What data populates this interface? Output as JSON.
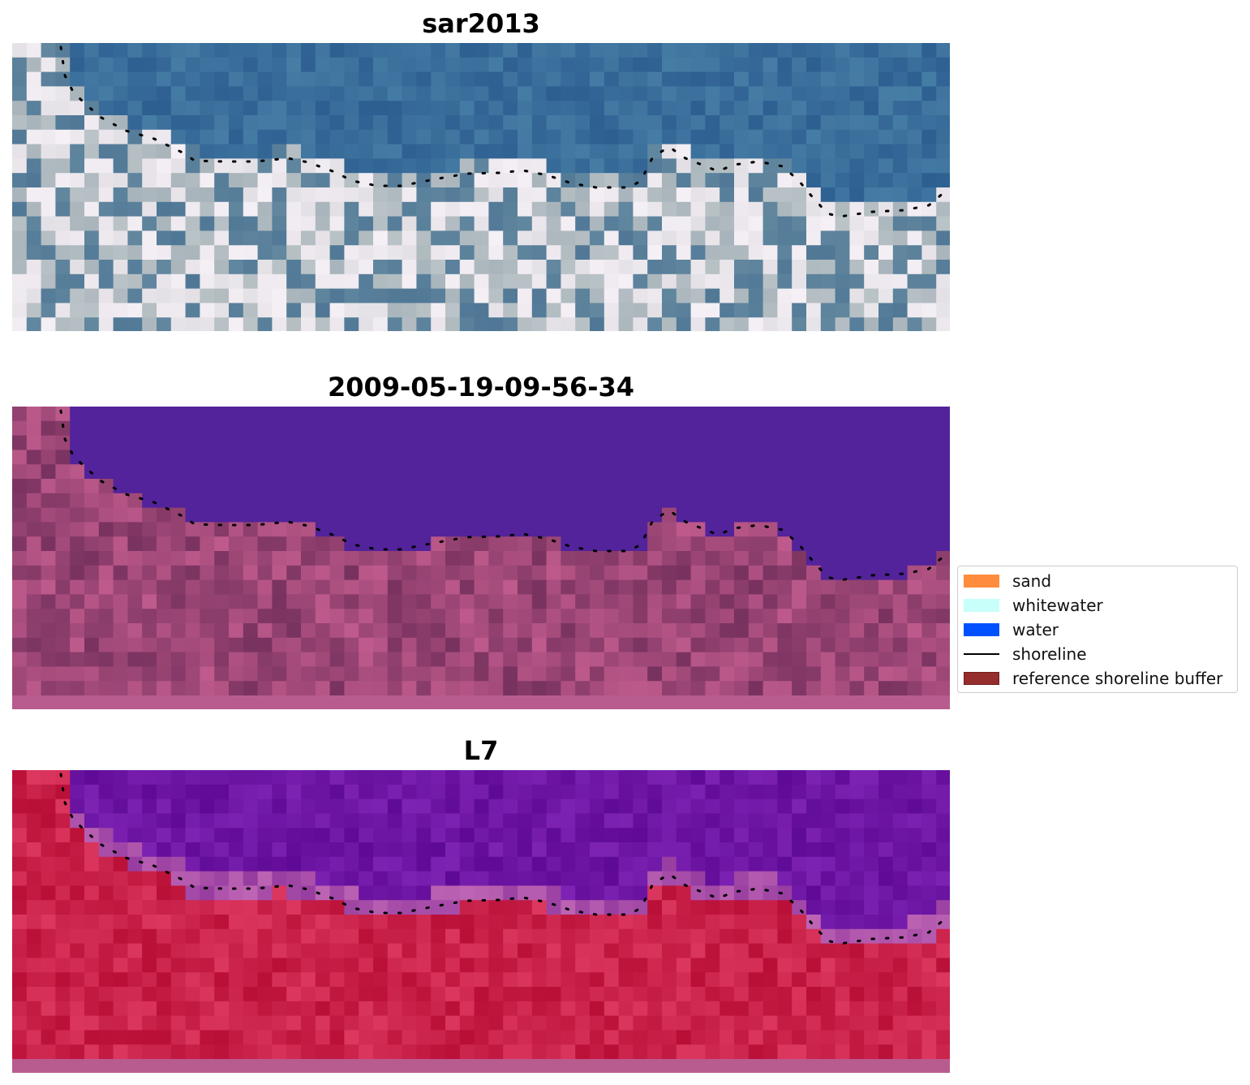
{
  "panels": [
    {
      "title": "sar2013",
      "style": "rgb"
    },
    {
      "title": "2009-05-19-09-56-34",
      "style": "classified"
    },
    {
      "title": "L7",
      "style": "index"
    }
  ],
  "legend": {
    "items": [
      {
        "label": "sand",
        "color": "#ff8c3c",
        "kind": "patch"
      },
      {
        "label": "whitewater",
        "color": "#c8fffa",
        "kind": "patch"
      },
      {
        "label": "water",
        "color": "#0050ff",
        "kind": "patch"
      },
      {
        "label": "shoreline",
        "color": "#000000",
        "kind": "line"
      },
      {
        "label": "reference shoreline buffer",
        "color": "#962d2d",
        "kind": "patch"
      }
    ]
  },
  "colors": {
    "water_class": "#52239a",
    "strip": "#b85c90",
    "shoreline_dots": "#000000"
  }
}
